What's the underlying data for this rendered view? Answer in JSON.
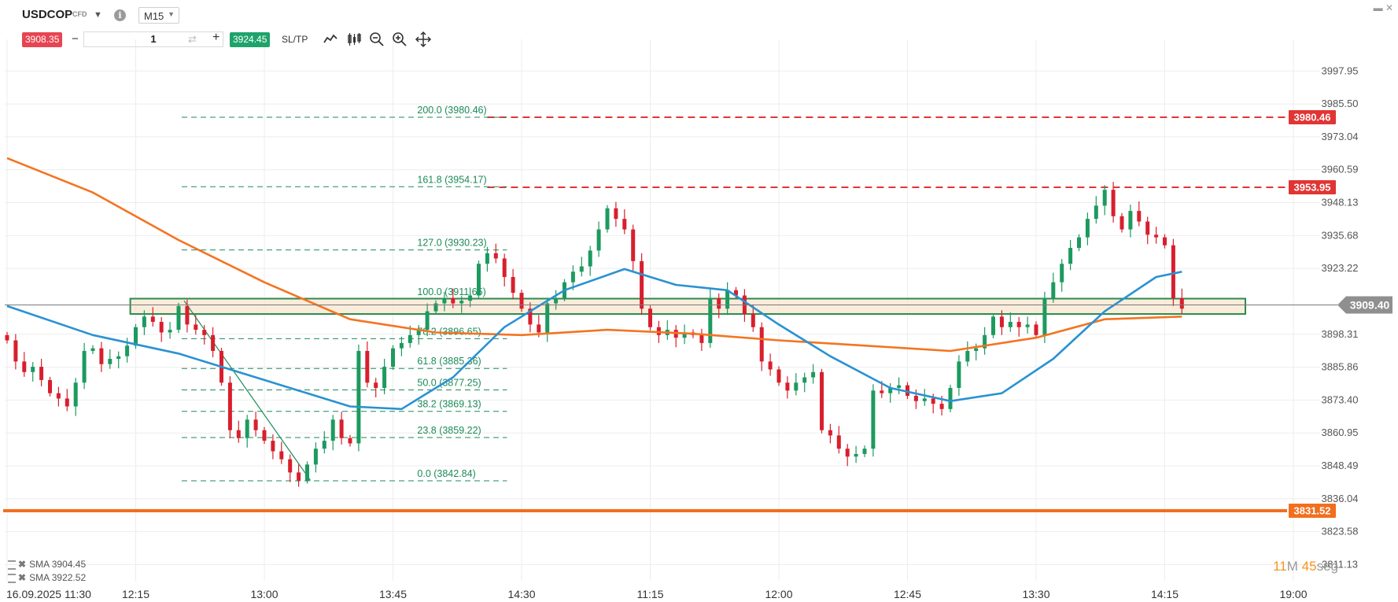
{
  "header": {
    "symbol": "USDCOP",
    "instrument_type": "CFD",
    "timeframe": "M15",
    "bid": "3908.35",
    "ask": "3924.45",
    "quantity": "1",
    "sltp_label": "SL/TP",
    "minus": "−",
    "plus": "+",
    "dropdown_icon": "caret-down-icon",
    "info_icon": "info-icon",
    "info_glyph": "i",
    "tools": [
      "line-chart-icon",
      "candlestick-icon",
      "zoom-out-icon",
      "zoom-in-icon",
      "crosshair-move-icon"
    ]
  },
  "legend": [
    {
      "label": "SMA 3904.45",
      "color": "#f47421"
    },
    {
      "label": "SMA 3922.52",
      "color": "#2a92d2"
    }
  ],
  "timer": {
    "minutes": "11",
    "minutes_unit": "M",
    "seconds": "45",
    "seconds_unit": "seg"
  },
  "colors": {
    "up": "#1c9a5f",
    "down": "#d81f2d",
    "sma_slow": "#f47421",
    "sma_fast": "#2a92d2",
    "fib": "#1c8a58",
    "resistance": "#e13535",
    "support": "#f26f1e",
    "zone_fill": "#f8e5cf",
    "zone_border": "#2c8a4f",
    "price_tag": "#8f8f8f"
  },
  "chart_data": {
    "type": "candlestick",
    "ylim": [
      3805,
      4004
    ],
    "y_ticks": [
      "3997.95",
      "3985.50",
      "3973.04",
      "3960.59",
      "3948.13",
      "3935.68",
      "3923.22",
      "3898.31",
      "3885.86",
      "3873.40",
      "3860.95",
      "3848.49",
      "3836.04",
      "3823.58",
      "3811.13"
    ],
    "x_ticks": [
      {
        "bar": 0,
        "label": "16.09.2025 11:30"
      },
      {
        "bar": 15,
        "label": "12:15"
      },
      {
        "bar": 30,
        "label": "13:00"
      },
      {
        "bar": 45,
        "label": "13:45"
      },
      {
        "bar": 60,
        "label": "14:30"
      },
      {
        "bar": 75,
        "label": "11:15"
      },
      {
        "bar": 90,
        "label": "12:00"
      },
      {
        "bar": 105,
        "label": "12:45"
      },
      {
        "bar": 120,
        "label": "13:30"
      },
      {
        "bar": 135,
        "label": "14:15"
      },
      {
        "bar": 150,
        "label": "19:00"
      }
    ],
    "current_price": {
      "value": 3909.4,
      "label": "3909.40"
    },
    "horizontal_lines": [
      {
        "value": 3980.46,
        "label": "3980.46",
        "style": "dashed",
        "color": "#e13535",
        "from_bar": 56
      },
      {
        "value": 3953.95,
        "label": "3953.95",
        "style": "dashed",
        "color": "#e13535",
        "from_bar": 56
      },
      {
        "value": 3831.52,
        "label": "3831.52",
        "style": "solid",
        "color": "#f26f1e",
        "from_bar": 0
      }
    ],
    "zone": {
      "top": 3911.8,
      "bottom": 3906.0,
      "from_bar": 14,
      "to_bar": 141
    },
    "fibonacci": {
      "from_bar": 20,
      "to_bar": 56,
      "levels": [
        {
          "ratio": "200.0",
          "value": 3980.46,
          "label": "200.0 (3980.46)"
        },
        {
          "ratio": "161.8",
          "value": 3954.17,
          "label": "161.8 (3954.17)"
        },
        {
          "ratio": "127.0",
          "value": 3930.23,
          "label": "127.0 (3930.23)"
        },
        {
          "ratio": "100.0",
          "value": 3911.65,
          "label": "100.0 (3911.65)"
        },
        {
          "ratio": "78.2",
          "value": 3896.65,
          "label": "78.2 (3896.65)"
        },
        {
          "ratio": "61.8",
          "value": 3885.36,
          "label": "61.8 (3885.36)"
        },
        {
          "ratio": "50.0",
          "value": 3877.25,
          "label": "50.0 (3877.25)"
        },
        {
          "ratio": "38.2",
          "value": 3869.13,
          "label": "38.2 (3869.13)"
        },
        {
          "ratio": "23.8",
          "value": 3859.22,
          "label": "23.8 (3859.22)"
        },
        {
          "ratio": "0.0",
          "value": 3842.84,
          "label": "0.0 (3842.84)"
        }
      ]
    },
    "trendline": {
      "bar1": 20,
      "value1": 3911,
      "bar2": 34,
      "value2": 3843
    },
    "closes": [
      3896,
      3888,
      3884,
      3886,
      3881,
      3876,
      3874,
      3871,
      3880,
      3892,
      3893,
      3887,
      3889,
      3890,
      3894,
      3901,
      3905,
      3903,
      3899,
      3900,
      3909,
      3902,
      3900,
      3898,
      3892,
      3880,
      3862,
      3859,
      3866,
      3862,
      3858,
      3854,
      3851,
      3846,
      3843,
      3849,
      3855,
      3858,
      3866,
      3859,
      3857,
      3892,
      3880,
      3878,
      3886,
      3893,
      3895,
      3898,
      3900,
      3907,
      3910,
      3912,
      3910,
      3911,
      3913,
      3925,
      3929,
      3927,
      3920,
      3914,
      3908,
      3902,
      3899,
      3910,
      3912,
      3918,
      3922,
      3924,
      3930,
      3938,
      3946,
      3942,
      3938,
      3926,
      3908,
      3901,
      3898,
      3900,
      3897,
      3899,
      3898,
      3895,
      3912,
      3908,
      3915,
      3913,
      3906,
      3901,
      3888,
      3885,
      3880,
      3877,
      3880,
      3882,
      3884,
      3862,
      3860,
      3855,
      3852,
      3853,
      3855,
      3877,
      3876,
      3878,
      3879,
      3875,
      3873,
      3874,
      3872,
      3870,
      3878,
      3888,
      3892,
      3893,
      3898,
      3905,
      3901,
      3903,
      3901,
      3902,
      3898,
      3912,
      3918,
      3925,
      3931,
      3935,
      3942,
      3947,
      3953,
      3943,
      3938,
      3945,
      3941,
      3936,
      3935,
      3932,
      3912,
      3908
    ],
    "sma_slow": [
      {
        "bar": 0,
        "value": 3965
      },
      {
        "bar": 10,
        "value": 3952
      },
      {
        "bar": 20,
        "value": 3934
      },
      {
        "bar": 30,
        "value": 3918
      },
      {
        "bar": 40,
        "value": 3904
      },
      {
        "bar": 50,
        "value": 3899
      },
      {
        "bar": 60,
        "value": 3898
      },
      {
        "bar": 70,
        "value": 3900
      },
      {
        "bar": 80,
        "value": 3898.5
      },
      {
        "bar": 90,
        "value": 3896
      },
      {
        "bar": 100,
        "value": 3894
      },
      {
        "bar": 110,
        "value": 3892
      },
      {
        "bar": 120,
        "value": 3897
      },
      {
        "bar": 128,
        "value": 3904
      },
      {
        "bar": 137,
        "value": 3905
      }
    ],
    "sma_fast": [
      {
        "bar": 0,
        "value": 3909
      },
      {
        "bar": 10,
        "value": 3898
      },
      {
        "bar": 20,
        "value": 3891
      },
      {
        "bar": 30,
        "value": 3881
      },
      {
        "bar": 40,
        "value": 3871
      },
      {
        "bar": 46,
        "value": 3870
      },
      {
        "bar": 52,
        "value": 3882
      },
      {
        "bar": 58,
        "value": 3901
      },
      {
        "bar": 65,
        "value": 3915
      },
      {
        "bar": 72,
        "value": 3923
      },
      {
        "bar": 78,
        "value": 3917
      },
      {
        "bar": 84,
        "value": 3915
      },
      {
        "bar": 90,
        "value": 3902
      },
      {
        "bar": 96,
        "value": 3890
      },
      {
        "bar": 103,
        "value": 3878
      },
      {
        "bar": 110,
        "value": 3873
      },
      {
        "bar": 116,
        "value": 3876
      },
      {
        "bar": 122,
        "value": 3889
      },
      {
        "bar": 128,
        "value": 3907
      },
      {
        "bar": 134,
        "value": 3920
      },
      {
        "bar": 137,
        "value": 3922
      }
    ]
  }
}
